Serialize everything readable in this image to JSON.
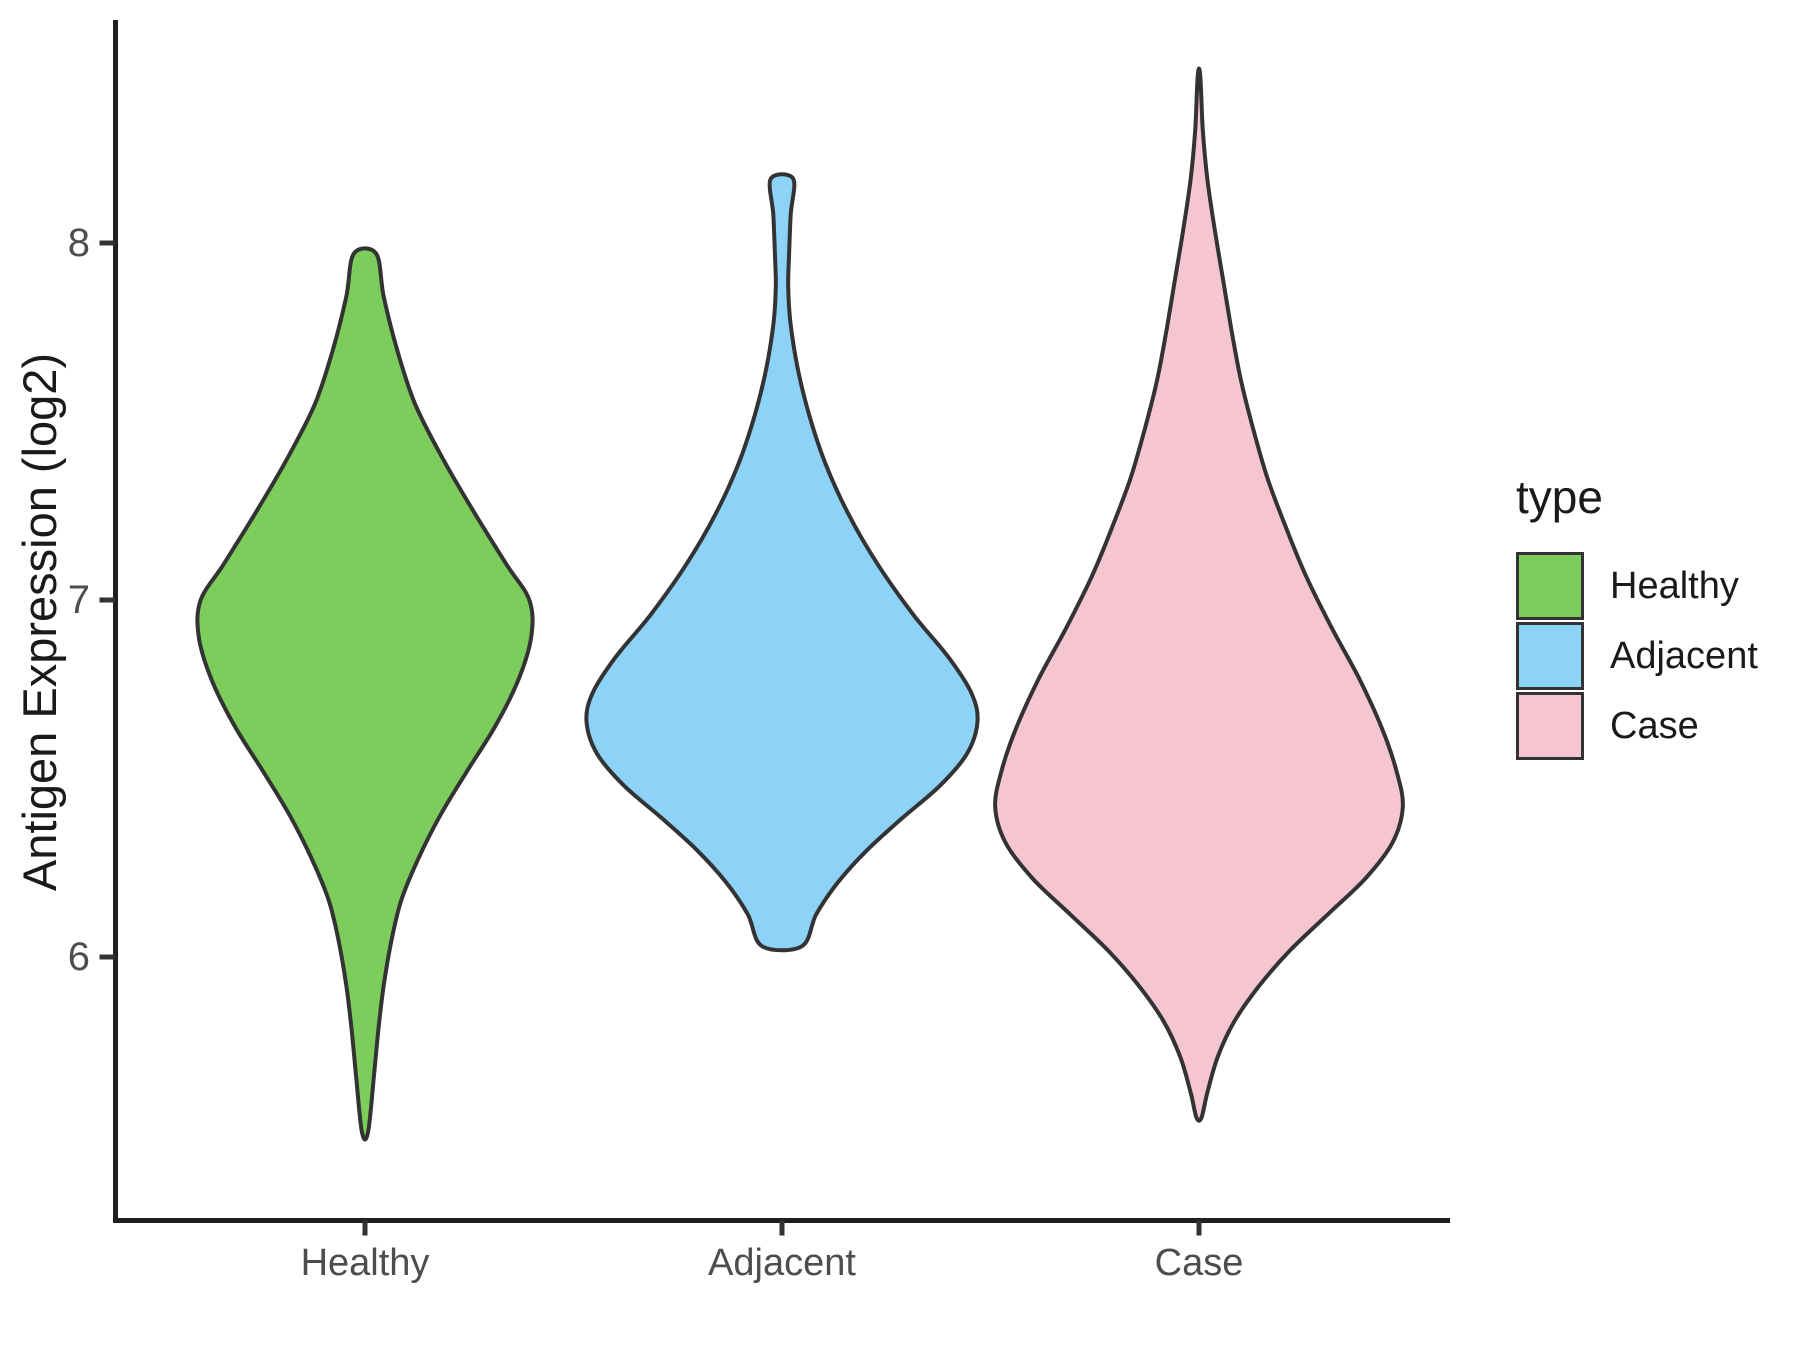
{
  "figure": {
    "background": "#ffffff"
  },
  "y_axis": {
    "title": "Antigen Expression (log2)",
    "tick_labels": [
      "6",
      "7",
      "8"
    ],
    "tick_values": [
      6,
      7,
      8
    ]
  },
  "x_axis": {
    "categories": [
      "Healthy",
      "Adjacent",
      "Case"
    ]
  },
  "legend": {
    "title": "type",
    "items": [
      {
        "label": "Healthy",
        "color": "#7ccd5b"
      },
      {
        "label": "Adjacent",
        "color": "#8dd2f7"
      },
      {
        "label": "Case",
        "color": "#f5c6d2"
      }
    ]
  },
  "style": {
    "outline_color": "#333333",
    "axis_line_color": "#1f1f1f",
    "tick_color": "#333333",
    "axis_text_color": "#4d4d4d"
  },
  "chart_data": {
    "type": "violin",
    "title": "",
    "xlabel": "",
    "ylabel": "Antigen Expression (log2)",
    "categories": [
      "Healthy",
      "Adjacent",
      "Case"
    ],
    "ylim": [
      5.26,
      8.62
    ],
    "yticks": [
      6,
      7,
      8
    ],
    "grid": false,
    "legend_position": "right",
    "profile_note": "profile = pairs of [expression_value_log2, half_width_fraction]; half_width_fraction 1.0 equals the maximum violin half-width",
    "series": [
      {
        "name": "Healthy",
        "color": "#7ccd5b",
        "observed_min": 5.51,
        "observed_max": 7.97,
        "peak_density_at": 6.95,
        "flat_top": true,
        "flat_bottom": false,
        "profile": [
          [
            7.97,
            0.054
          ],
          [
            7.85,
            0.09
          ],
          [
            7.7,
            0.155
          ],
          [
            7.55,
            0.24
          ],
          [
            7.4,
            0.37
          ],
          [
            7.25,
            0.52
          ],
          [
            7.1,
            0.68
          ],
          [
            7.0,
            0.79
          ],
          [
            6.9,
            0.8
          ],
          [
            6.78,
            0.74
          ],
          [
            6.65,
            0.63
          ],
          [
            6.52,
            0.49
          ],
          [
            6.4,
            0.365
          ],
          [
            6.28,
            0.26
          ],
          [
            6.16,
            0.175
          ],
          [
            6.04,
            0.125
          ],
          [
            5.92,
            0.09
          ],
          [
            5.8,
            0.065
          ],
          [
            5.68,
            0.045
          ],
          [
            5.51,
            0.015
          ]
        ]
      },
      {
        "name": "Adjacent",
        "color": "#8dd2f7",
        "observed_min": 6.03,
        "observed_max": 8.18,
        "peak_density_at": 6.66,
        "flat_top": true,
        "flat_bottom": true,
        "profile": [
          [
            8.18,
            0.054
          ],
          [
            8.08,
            0.042
          ],
          [
            7.97,
            0.034
          ],
          [
            7.88,
            0.03
          ],
          [
            7.78,
            0.04
          ],
          [
            7.65,
            0.075
          ],
          [
            7.52,
            0.13
          ],
          [
            7.38,
            0.21
          ],
          [
            7.24,
            0.32
          ],
          [
            7.1,
            0.46
          ],
          [
            6.96,
            0.63
          ],
          [
            6.84,
            0.8
          ],
          [
            6.74,
            0.91
          ],
          [
            6.66,
            0.94
          ],
          [
            6.57,
            0.89
          ],
          [
            6.48,
            0.76
          ],
          [
            6.39,
            0.58
          ],
          [
            6.3,
            0.41
          ],
          [
            6.21,
            0.27
          ],
          [
            6.12,
            0.165
          ],
          [
            6.03,
            0.095
          ]
        ]
      },
      {
        "name": "Case",
        "color": "#f5c6d2",
        "observed_min": 5.55,
        "observed_max": 8.47,
        "peak_density_at": 6.42,
        "flat_top": false,
        "flat_bottom": false,
        "profile": [
          [
            8.47,
            0.006
          ],
          [
            8.32,
            0.018
          ],
          [
            8.18,
            0.04
          ],
          [
            8.04,
            0.075
          ],
          [
            7.9,
            0.115
          ],
          [
            7.76,
            0.155
          ],
          [
            7.62,
            0.2
          ],
          [
            7.48,
            0.26
          ],
          [
            7.34,
            0.33
          ],
          [
            7.2,
            0.42
          ],
          [
            7.06,
            0.52
          ],
          [
            6.92,
            0.64
          ],
          [
            6.78,
            0.77
          ],
          [
            6.64,
            0.88
          ],
          [
            6.52,
            0.95
          ],
          [
            6.42,
            0.98
          ],
          [
            6.32,
            0.93
          ],
          [
            6.22,
            0.8
          ],
          [
            6.12,
            0.62
          ],
          [
            6.02,
            0.44
          ],
          [
            5.92,
            0.29
          ],
          [
            5.82,
            0.17
          ],
          [
            5.72,
            0.09
          ],
          [
            5.62,
            0.04
          ],
          [
            5.55,
            0.012
          ]
        ]
      }
    ]
  }
}
